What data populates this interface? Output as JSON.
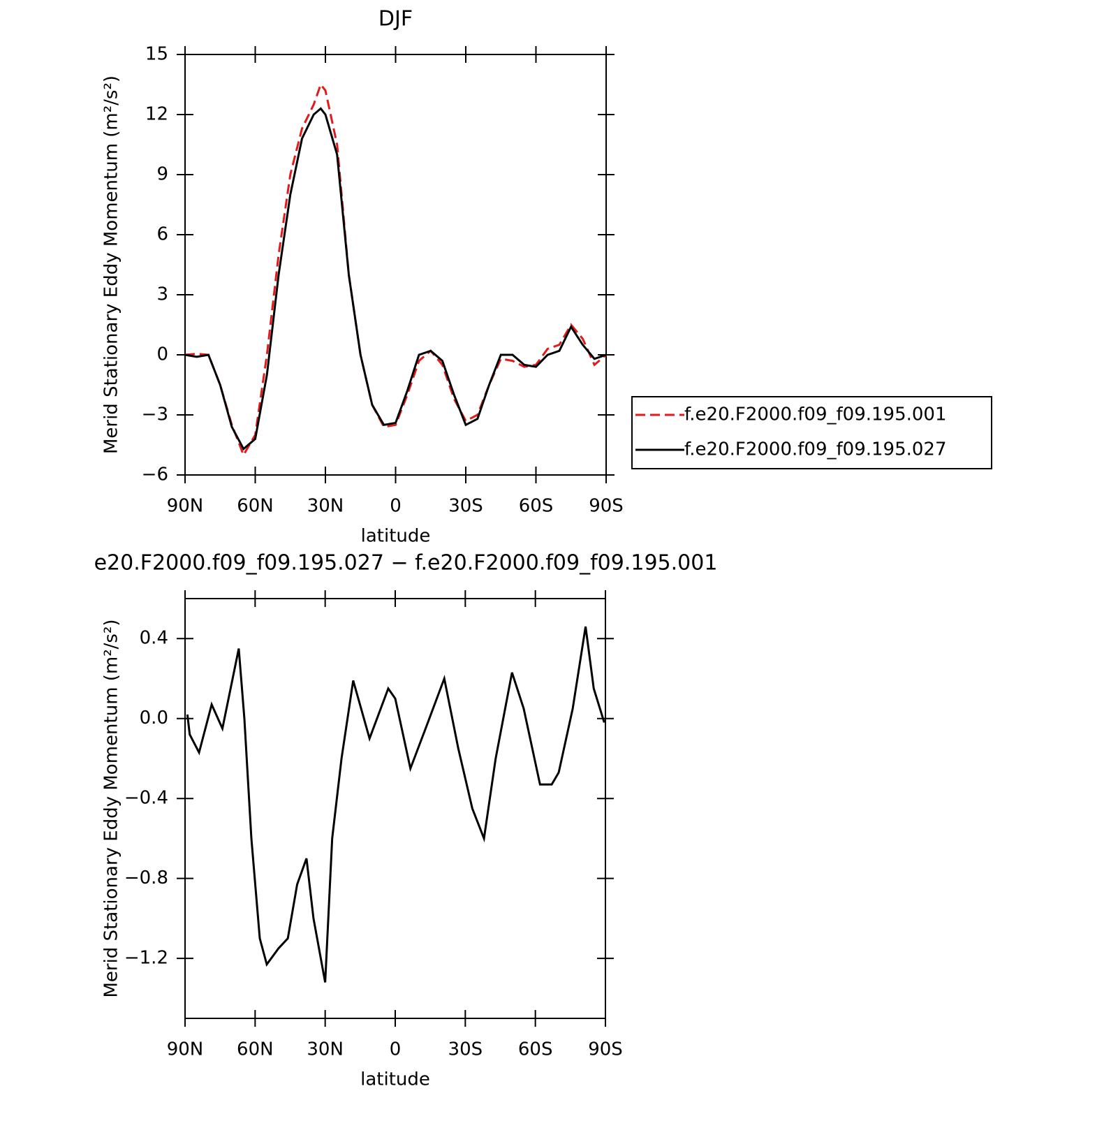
{
  "chart_data": [
    {
      "type": "line",
      "title": "DJF",
      "xlabel": "latitude",
      "ylabel": "Merid Stationary Eddy Momentum (m²/s²)",
      "xlim": [
        90,
        -90
      ],
      "ylim": [
        -6,
        15
      ],
      "xticks": [
        {
          "value": 90,
          "label": "90N"
        },
        {
          "value": 60,
          "label": "60N"
        },
        {
          "value": 30,
          "label": "30N"
        },
        0,
        {
          "value": -30,
          "label": "30S"
        },
        {
          "value": -60,
          "label": "60S"
        },
        {
          "value": -90,
          "label": "90S"
        }
      ],
      "yticks": [
        {
          "value": -6,
          "label": "−6"
        },
        {
          "value": -3,
          "label": "−3"
        },
        0,
        3,
        6,
        9,
        12,
        15
      ],
      "legend": "outside-right",
      "x": [
        90,
        85,
        80,
        75,
        70,
        65,
        60,
        55,
        50,
        45,
        40,
        35,
        32,
        30,
        25,
        20,
        15,
        10,
        5,
        0,
        -5,
        -10,
        -15,
        -20,
        -25,
        -30,
        -35,
        -40,
        -45,
        -50,
        -55,
        -60,
        -65,
        -70,
        -75,
        -80,
        -85,
        -90
      ],
      "series": [
        {
          "name": "f.e20.F2000.f09_f09.195.001",
          "color": "#e31a1c",
          "dash": true,
          "values": [
            0,
            0.05,
            0,
            -1.5,
            -3.5,
            -5.0,
            -4.0,
            0,
            5,
            9,
            11.3,
            12.5,
            13.5,
            13.2,
            10.5,
            4,
            0,
            -2.5,
            -3.6,
            -3.5,
            -2,
            -0.3,
            0.2,
            -0.5,
            -2.2,
            -3.3,
            -3.0,
            -1.5,
            -0.2,
            -0.3,
            -0.6,
            -0.5,
            0.3,
            0.5,
            1.5,
            0.8,
            -0.5,
            0
          ]
        },
        {
          "name": "f.e20.F2000.f09_f09.195.027",
          "color": "#000000",
          "dash": false,
          "values": [
            0,
            -0.1,
            0,
            -1.5,
            -3.6,
            -4.7,
            -4.2,
            -1,
            4,
            8,
            10.8,
            12,
            12.3,
            12,
            10,
            4,
            0,
            -2.5,
            -3.5,
            -3.4,
            -1.8,
            0,
            0.2,
            -0.3,
            -2,
            -3.5,
            -3.2,
            -1.5,
            0,
            0,
            -0.5,
            -0.6,
            0,
            0.2,
            1.4,
            0.5,
            -0.2,
            0
          ]
        }
      ]
    },
    {
      "type": "line",
      "title": "e20.F2000.f09_f09.195.027 − f.e20.F2000.f09_f09.195.001",
      "xlabel": "latitude",
      "ylabel": "Merid Stationary Eddy Momentum (m²/s²)",
      "xlim": [
        90,
        -90
      ],
      "ylim": [
        -1.5,
        0.6
      ],
      "xticks": [
        {
          "value": 90,
          "label": "90N"
        },
        {
          "value": 60,
          "label": "60N"
        },
        {
          "value": 30,
          "label": "30N"
        },
        0,
        {
          "value": -30,
          "label": "30S"
        },
        {
          "value": -60,
          "label": "60S"
        },
        {
          "value": -90,
          "label": "90S"
        }
      ],
      "yticks": [
        {
          "value": -1.2,
          "label": "−1.2"
        },
        {
          "value": -0.8,
          "label": "−0.8"
        },
        {
          "value": -0.4,
          "label": "−0.4"
        },
        {
          "value": 0,
          "label": "0.0"
        },
        0.4
      ],
      "x": [
        89,
        88,
        84,
        78.6,
        74,
        67,
        64.6,
        61.6,
        58,
        55,
        50,
        46,
        42,
        38,
        35,
        30,
        27,
        23,
        18,
        11,
        3,
        0,
        -6.5,
        -13,
        -21,
        -27,
        -33,
        -38,
        -43,
        -50,
        -55,
        -62,
        -67,
        -70,
        -76,
        -81.5,
        -85,
        -89.5
      ],
      "series": [
        {
          "color": "#000000",
          "dash": false,
          "values": [
            0.02,
            -0.08,
            -0.17,
            0.07,
            -0.05,
            0.35,
            0,
            -0.6,
            -1.1,
            -1.23,
            -1.15,
            -1.1,
            -0.83,
            -0.7,
            -1.0,
            -1.32,
            -0.6,
            -0.2,
            0.19,
            -0.1,
            0.15,
            0.1,
            -0.25,
            -0.05,
            0.2,
            -0.15,
            -0.45,
            -0.6,
            -0.2,
            0.23,
            0.05,
            -0.33,
            -0.33,
            -0.27,
            0.05,
            0.46,
            0.15,
            -0.02
          ]
        }
      ]
    }
  ]
}
